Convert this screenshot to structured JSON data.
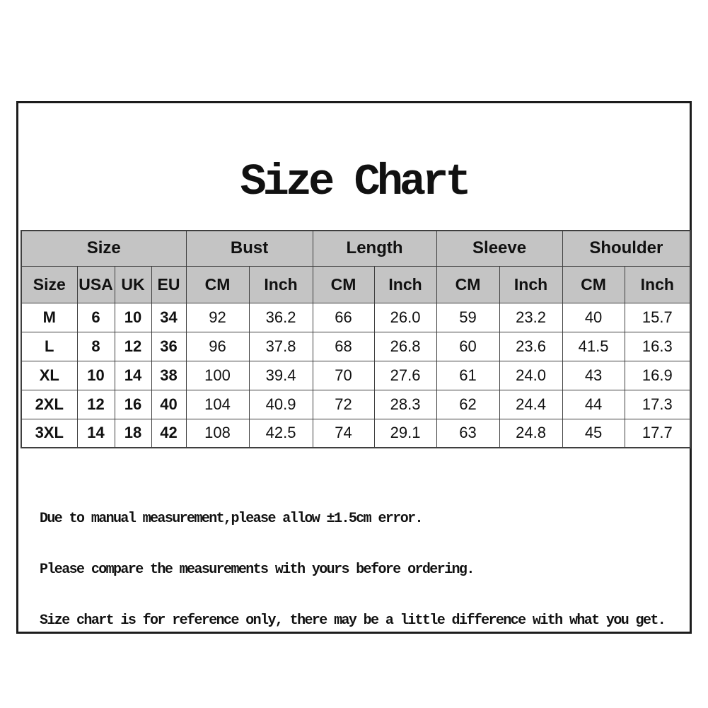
{
  "chart_data": {
    "type": "table",
    "title": "Size Chart",
    "column_groups": [
      {
        "label": "Size",
        "span": 4
      },
      {
        "label": "Bust",
        "span": 2
      },
      {
        "label": "Length",
        "span": 2
      },
      {
        "label": "Sleeve",
        "span": 2
      },
      {
        "label": "Shoulder",
        "span": 2
      }
    ],
    "columns": [
      "Size",
      "USA",
      "UK",
      "EU",
      "CM",
      "Inch",
      "CM",
      "Inch",
      "CM",
      "Inch",
      "CM",
      "Inch"
    ],
    "rows": [
      [
        "M",
        "6",
        "10",
        "34",
        "92",
        "36.2",
        "66",
        "26.0",
        "59",
        "23.2",
        "40",
        "15.7"
      ],
      [
        "L",
        "8",
        "12",
        "36",
        "96",
        "37.8",
        "68",
        "26.8",
        "60",
        "23.6",
        "41.5",
        "16.3"
      ],
      [
        "XL",
        "10",
        "14",
        "38",
        "100",
        "39.4",
        "70",
        "27.6",
        "61",
        "24.0",
        "43",
        "16.9"
      ],
      [
        "2XL",
        "12",
        "16",
        "40",
        "104",
        "40.9",
        "72",
        "28.3",
        "62",
        "24.4",
        "44",
        "17.3"
      ],
      [
        "3XL",
        "14",
        "18",
        "42",
        "108",
        "42.5",
        "74",
        "29.1",
        "63",
        "24.8",
        "45",
        "17.7"
      ]
    ],
    "notes": [
      "Due to manual measurement,please allow ±1.5cm error.",
      "Please compare the measurements with yours before ordering.",
      "Size chart is for reference only, there may be a little difference with what you get."
    ],
    "colors": {
      "header_bg": "#c4c4c4",
      "grid_line": "#3f3f3f",
      "frame_border": "#1c1c1c",
      "text": "#111111",
      "background": "#ffffff"
    }
  }
}
